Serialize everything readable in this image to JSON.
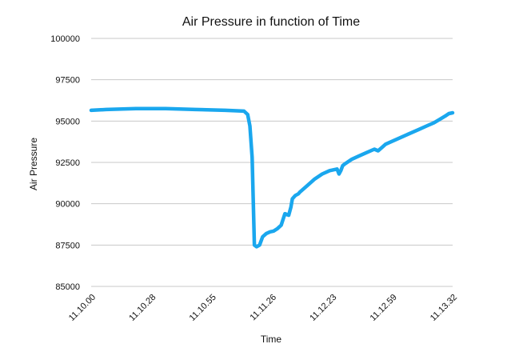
{
  "chart_data": {
    "type": "line",
    "title": "Air Pressure in function of Time",
    "xlabel": "Time",
    "ylabel": "Air Pressure",
    "ylim": [
      85000,
      100000
    ],
    "yticks": [
      "85000",
      "87500",
      "90000",
      "92500",
      "95000",
      "97500",
      "100000"
    ],
    "xtick_labels": [
      "11.10.00",
      "11.10.28",
      "11.10.55",
      "11.11.26",
      "11.12.23",
      "11.12.59",
      "11.13.32"
    ],
    "grid": true,
    "color": "#1aa7ee",
    "series": [
      {
        "x": [
          0,
          4,
          12,
          20,
          28,
          36,
          41,
          42,
          42.6,
          43.2,
          43.8,
          44.4,
          45.2,
          46,
          47,
          48,
          49,
          50,
          51,
          52,
          53,
          53.6,
          54,
          54.8,
          55.6,
          56,
          57,
          58,
          60,
          62,
          64,
          66,
          66.5,
          67,
          67.5,
          68,
          70,
          72,
          74,
          76,
          77,
          78,
          79,
          80,
          82,
          84,
          86,
          88,
          90,
          92,
          93.5,
          95,
          96,
          97
        ],
        "y": [
          95650,
          95700,
          95750,
          95750,
          95700,
          95650,
          95600,
          95400,
          94700,
          92800,
          87500,
          87400,
          87500,
          88000,
          88200,
          88300,
          88350,
          88500,
          88700,
          89400,
          89300,
          89800,
          90300,
          90500,
          90600,
          90700,
          90900,
          91100,
          91500,
          91800,
          92000,
          92100,
          91800,
          92000,
          92300,
          92400,
          92700,
          92900,
          93100,
          93300,
          93200,
          93400,
          93600,
          93700,
          93900,
          94100,
          94300,
          94500,
          94700,
          94900,
          95100,
          95300,
          95450,
          95500
        ]
      }
    ]
  }
}
